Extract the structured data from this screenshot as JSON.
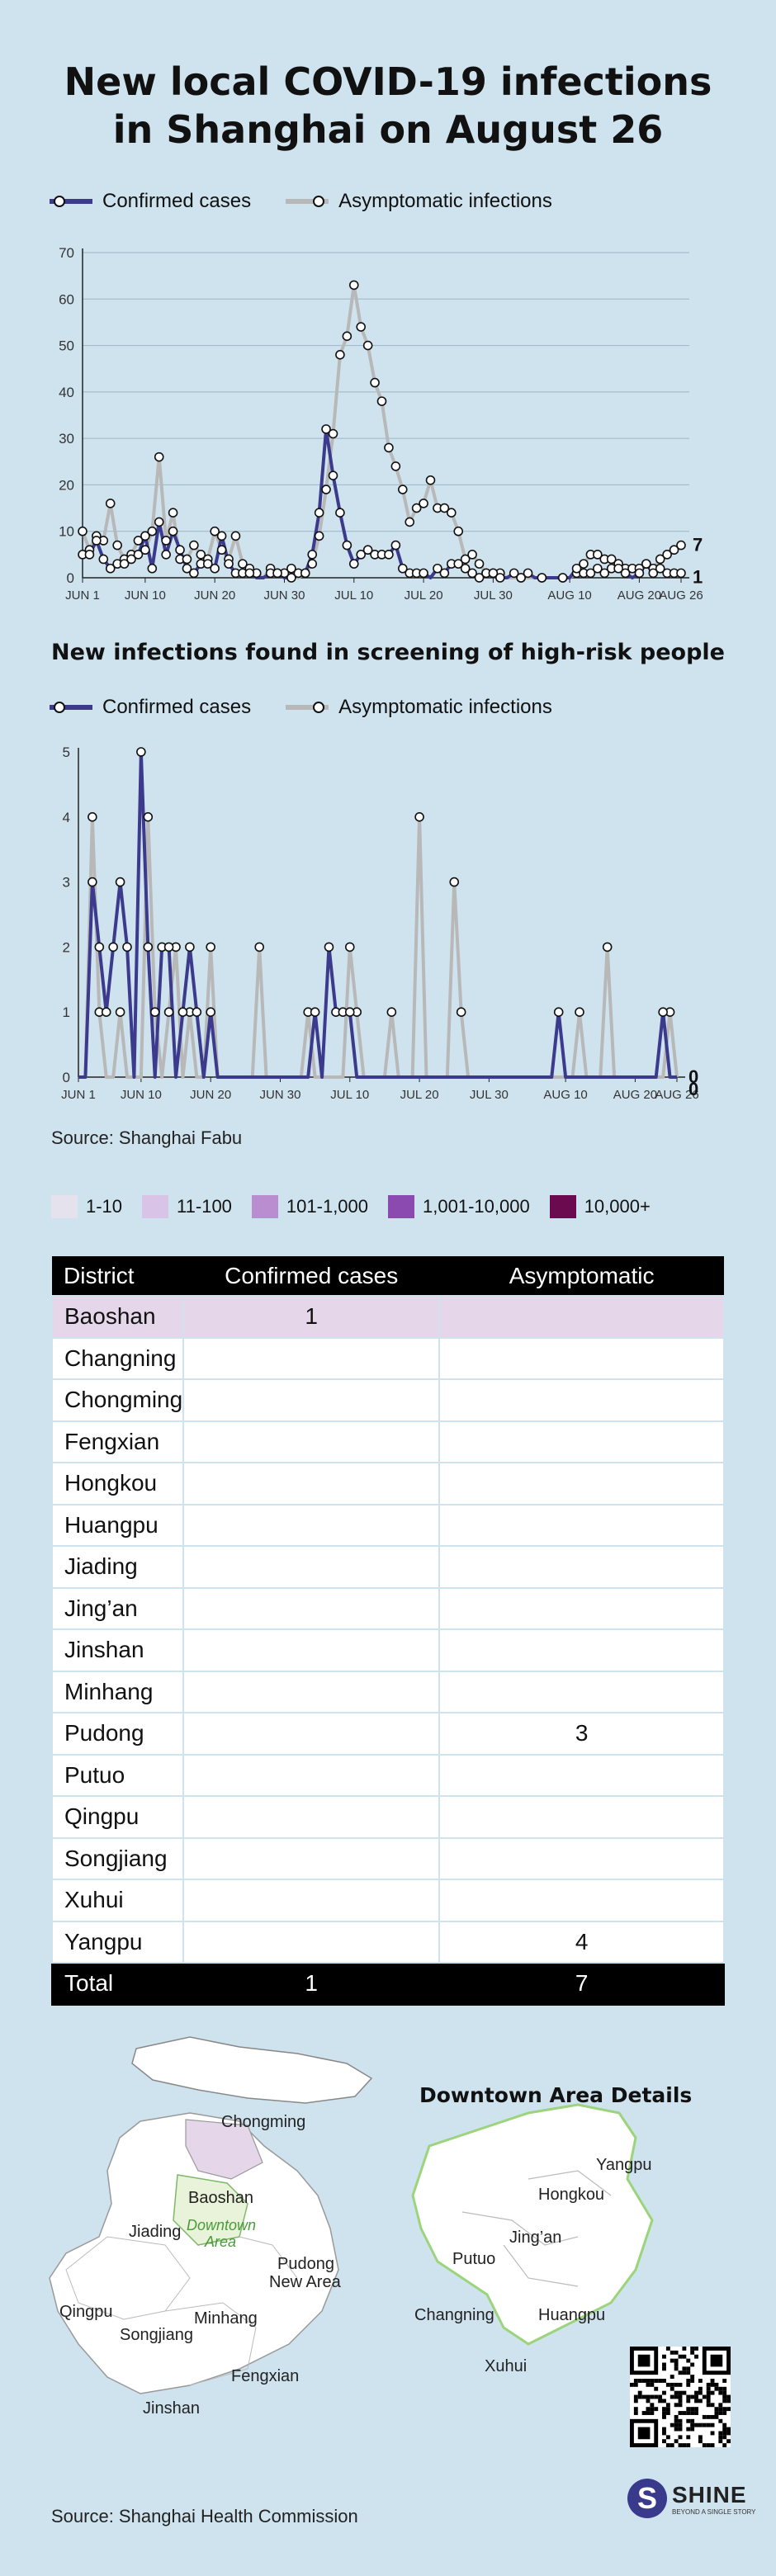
{
  "title_line1": "New local COVID-19 infections",
  "title_line2": "in Shanghai on August 26",
  "legend": {
    "confirmed": "Confirmed cases",
    "asymptomatic": "Asymptomatic infections"
  },
  "colors": {
    "confirmed": "#3b3a8c",
    "asymptomatic": "#b8b8b8",
    "background": "#cfe3ef"
  },
  "chart_data": [
    {
      "type": "line",
      "title": "",
      "x_start": "JUN 1",
      "x_end": "AUG 26",
      "xticks": [
        "JUN 1",
        "JUN 10",
        "JUN 20",
        "JUN 30",
        "JUL 10",
        "JUL 20",
        "JUL 30",
        "AUG 10",
        "AUG 20",
        "AUG 26"
      ],
      "ylim": [
        0,
        70
      ],
      "yticks": [
        "0",
        "10",
        "20",
        "30",
        "40",
        "50",
        "60",
        "70"
      ],
      "grid": true,
      "end_labels": {
        "asymptomatic": "7",
        "confirmed": "1"
      },
      "series": [
        {
          "name": "Confirmed cases",
          "values": [
            5,
            5,
            8,
            4,
            2,
            3,
            3,
            4,
            5,
            9,
            2,
            12,
            5,
            10,
            6,
            2,
            1,
            3,
            3,
            2,
            9,
            3,
            1,
            1,
            1,
            0,
            0,
            1,
            1,
            0,
            0,
            1,
            1,
            5,
            14,
            32,
            22,
            14,
            7,
            3,
            5,
            6,
            5,
            5,
            5,
            7,
            2,
            1,
            1,
            1,
            0,
            2,
            1,
            3,
            3,
            2,
            1,
            0,
            1,
            1,
            0,
            0,
            1,
            0,
            1,
            0,
            0,
            0,
            0,
            0,
            0,
            2,
            1,
            1,
            2,
            1,
            2,
            2,
            1,
            0,
            1,
            3,
            1,
            2,
            1,
            1,
            1
          ]
        },
        {
          "name": "Asymptomatic infections",
          "values": [
            10,
            6,
            9,
            8,
            16,
            7,
            4,
            5,
            8,
            6,
            10,
            26,
            8,
            14,
            4,
            4,
            7,
            5,
            4,
            10,
            6,
            4,
            9,
            3,
            2,
            1,
            0,
            2,
            1,
            1,
            2,
            0,
            1,
            3,
            9,
            19,
            31,
            48,
            52,
            63,
            54,
            50,
            42,
            38,
            28,
            24,
            19,
            12,
            15,
            16,
            21,
            15,
            15,
            14,
            10,
            4,
            5,
            3,
            1,
            1,
            1,
            0,
            0,
            0,
            0,
            0,
            0,
            0,
            0,
            0,
            0,
            1,
            3,
            5,
            5,
            4,
            4,
            3,
            2,
            2,
            2,
            3,
            2,
            4,
            5,
            6,
            7
          ]
        }
      ]
    },
    {
      "type": "line",
      "title": "New infections found in screening of high-risk people",
      "x_start": "JUN 1",
      "x_end": "AUG 26",
      "xticks": [
        "JUN 1",
        "JUN 10",
        "JUN 20",
        "JUN 30",
        "JUL 10",
        "JUL 20",
        "JUL 30",
        "AUG 10",
        "AUG 20",
        "AUG 26"
      ],
      "ylim": [
        0,
        5
      ],
      "yticks": [
        "0",
        "1",
        "2",
        "3",
        "4",
        "5"
      ],
      "grid": false,
      "end_labels": {
        "asymptomatic": "0",
        "confirmed": "0"
      },
      "series": [
        {
          "name": "Confirmed cases",
          "values": [
            0,
            0,
            3,
            2,
            1,
            2,
            3,
            2,
            0,
            5,
            2,
            0,
            2,
            2,
            0,
            1,
            2,
            1,
            0,
            1,
            0,
            0,
            0,
            0,
            0,
            0,
            0,
            0,
            0,
            0,
            0,
            0,
            0,
            0,
            1,
            0,
            2,
            1,
            1,
            1,
            0,
            0,
            0,
            0,
            0,
            0,
            0,
            0,
            0,
            0,
            0,
            0,
            0,
            0,
            0,
            0,
            0,
            0,
            0,
            0,
            0,
            0,
            0,
            0,
            0,
            0,
            0,
            0,
            0,
            1,
            0,
            0,
            0,
            0,
            0,
            0,
            0,
            0,
            0,
            0,
            0,
            0,
            0,
            0,
            1,
            0,
            0
          ]
        },
        {
          "name": "Asymptomatic infections",
          "values": [
            0,
            0,
            4,
            1,
            0,
            0,
            1,
            0,
            0,
            0,
            4,
            1,
            0,
            1,
            2,
            0,
            1,
            0,
            0,
            2,
            0,
            0,
            0,
            0,
            0,
            0,
            2,
            0,
            0,
            0,
            0,
            0,
            0,
            1,
            0,
            0,
            0,
            0,
            0,
            2,
            1,
            0,
            0,
            0,
            0,
            1,
            0,
            0,
            0,
            4,
            0,
            0,
            0,
            0,
            3,
            1,
            0,
            0,
            0,
            0,
            0,
            0,
            0,
            0,
            0,
            0,
            0,
            0,
            0,
            0,
            0,
            0,
            1,
            0,
            0,
            0,
            2,
            0,
            0,
            0,
            0,
            0,
            0,
            0,
            0,
            1,
            0
          ]
        }
      ]
    },
    {
      "type": "table",
      "title": "",
      "columns": [
        "District",
        "Confirmed cases",
        "Asymptomatic"
      ],
      "rows": [
        [
          "Baoshan",
          "1",
          ""
        ],
        [
          "Changning",
          "",
          ""
        ],
        [
          "Chongming",
          "",
          ""
        ],
        [
          "Fengxian",
          "",
          ""
        ],
        [
          "Hongkou",
          "",
          ""
        ],
        [
          "Huangpu",
          "",
          ""
        ],
        [
          "Jiading",
          "",
          ""
        ],
        [
          "Jing’an",
          "",
          ""
        ],
        [
          "Jinshan",
          "",
          ""
        ],
        [
          "Minhang",
          "",
          ""
        ],
        [
          "Pudong",
          "",
          "3"
        ],
        [
          "Putuo",
          "",
          ""
        ],
        [
          "Qingpu",
          "",
          ""
        ],
        [
          "Songjiang",
          "",
          ""
        ],
        [
          "Xuhui",
          "",
          ""
        ],
        [
          "Yangpu",
          "",
          "4"
        ]
      ],
      "total": [
        "Total",
        "1",
        "7"
      ]
    }
  ],
  "source1": "Source: Shanghai Fabu",
  "source2": "Source: Shanghai Health Commission",
  "scale": [
    {
      "label": "1-10",
      "color": "#e5e2ee"
    },
    {
      "label": "11-100",
      "color": "#d9c3e6"
    },
    {
      "label": "101-1,000",
      "color": "#b98dd0"
    },
    {
      "label": "1,001-10,000",
      "color": "#8a4ab0"
    },
    {
      "label": "10,000+",
      "color": "#6b0a4e"
    }
  ],
  "map": {
    "labels": [
      "Chongming",
      "Baoshan",
      "Jiading",
      "Downtown",
      "Area",
      "Pudong",
      "New Area",
      "Qingpu",
      "Minhang",
      "Songjiang",
      "Fengxian",
      "Jinshan"
    ],
    "downtown_title": "Downtown Area Details",
    "downtown_labels": [
      "Yangpu",
      "Hongkou",
      "Jing’an",
      "Putuo",
      "Changning",
      "Huangpu",
      "Xuhui"
    ]
  },
  "logo": {
    "name": "SHINE",
    "tagline": "BEYOND A SINGLE STORY"
  }
}
